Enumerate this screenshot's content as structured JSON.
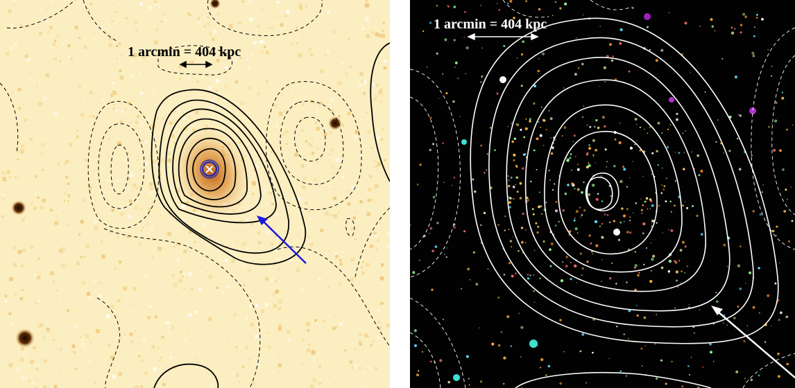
{
  "panels": [
    {
      "id": "optical-panel",
      "scale_label": "1 arcmin = 404 kpc",
      "background_color": "#fbeec0",
      "contour_color": "#000000",
      "arrow_color": "#1a1adf",
      "marker_symbol": "×",
      "marker_color": "#ffffff",
      "marker_ring_color": "#2a2aa8"
    },
    {
      "id": "color-composite-panel",
      "scale_label": "1 arcmin = 404 kpc",
      "background_color": "#020202",
      "contour_color": "#ffffff",
      "arrow_color": "#ffffff"
    }
  ]
}
